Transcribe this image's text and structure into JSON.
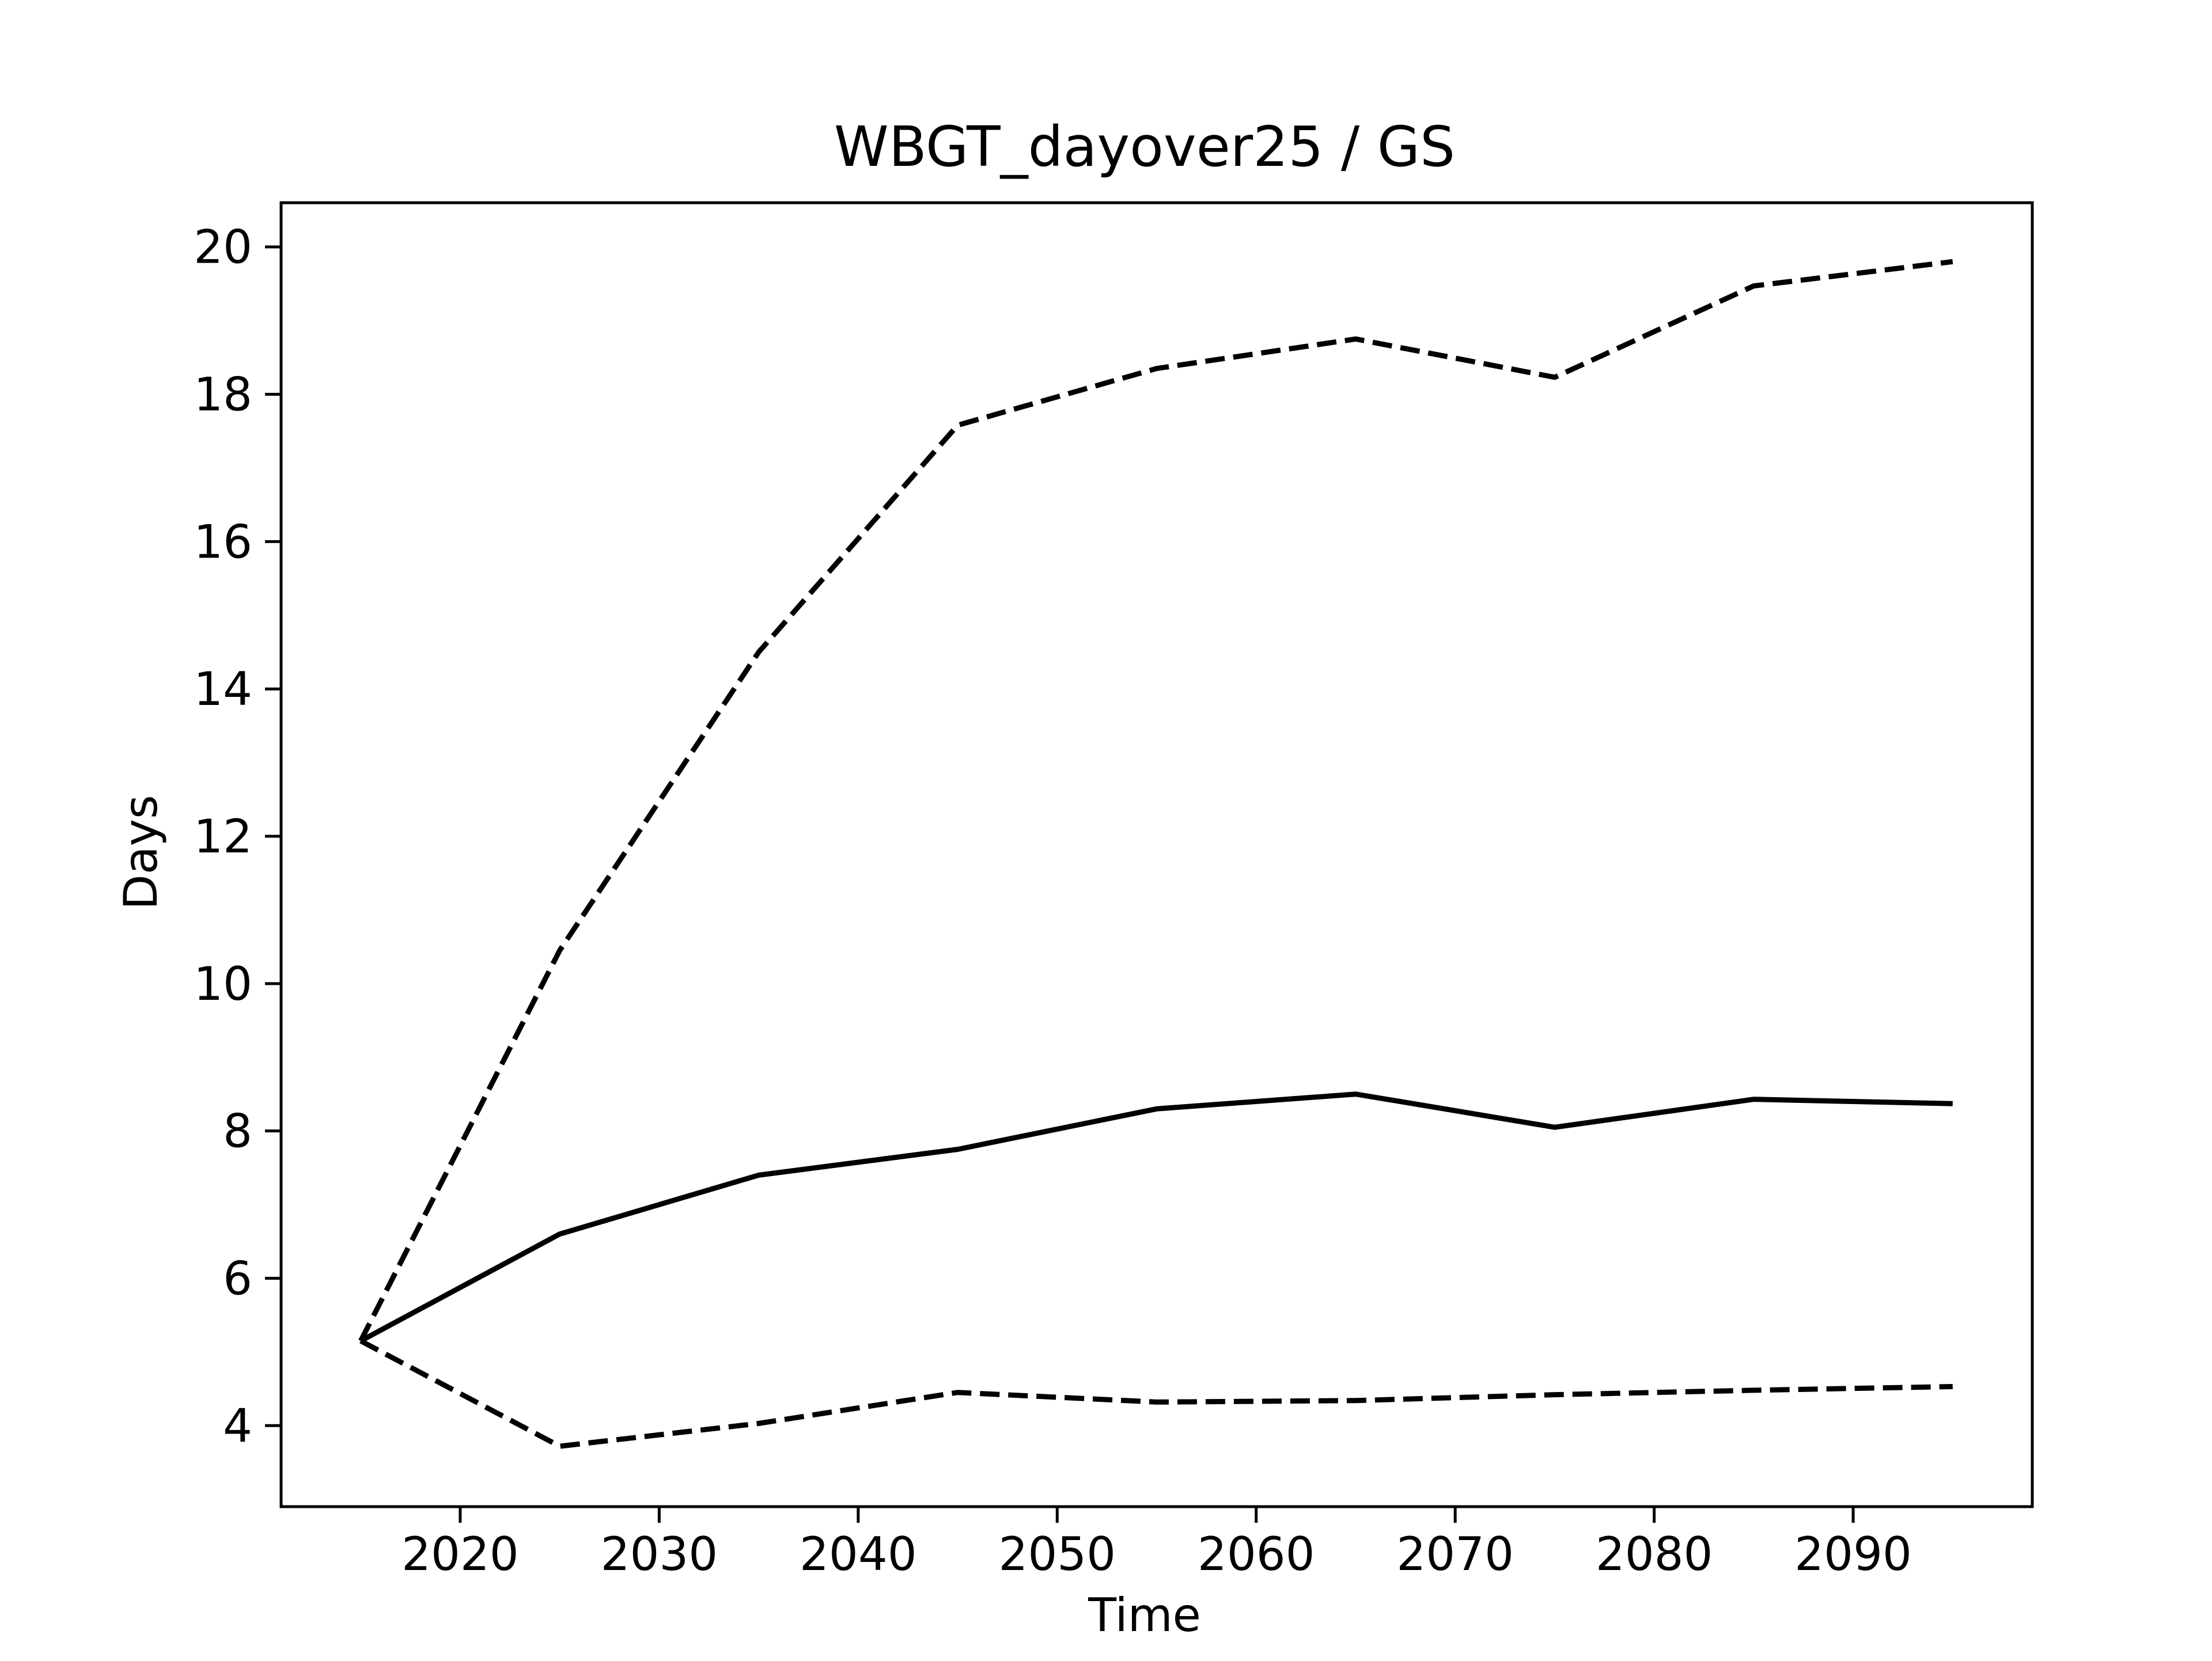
{
  "chart_data": {
    "type": "line",
    "title": "WBGT_dayover25 / GS",
    "xlabel": "Time",
    "ylabel": "Days",
    "xlim": [
      2011,
      2099
    ],
    "ylim": [
      2.9,
      20.6
    ],
    "x_ticks": [
      2020,
      2030,
      2040,
      2050,
      2060,
      2070,
      2080,
      2090
    ],
    "y_ticks": [
      4,
      6,
      8,
      10,
      12,
      14,
      16,
      18,
      20
    ],
    "grid": false,
    "legend": "none",
    "x": [
      2015,
      2025,
      2035,
      2045,
      2055,
      2065,
      2075,
      2085,
      2095
    ],
    "series": [
      {
        "style": "solid",
        "color": "#000000",
        "values": [
          5.15,
          6.6,
          7.4,
          7.75,
          8.3,
          8.5,
          8.05,
          8.43,
          8.37
        ]
      },
      {
        "style": "dashed",
        "color": "#000000",
        "values": [
          5.15,
          10.45,
          14.5,
          17.58,
          18.35,
          18.75,
          18.23,
          19.47,
          19.8
        ]
      },
      {
        "style": "dashed",
        "color": "#000000",
        "values": [
          5.15,
          3.72,
          4.03,
          4.45,
          4.32,
          4.34,
          4.42,
          4.48,
          4.53
        ]
      }
    ]
  }
}
